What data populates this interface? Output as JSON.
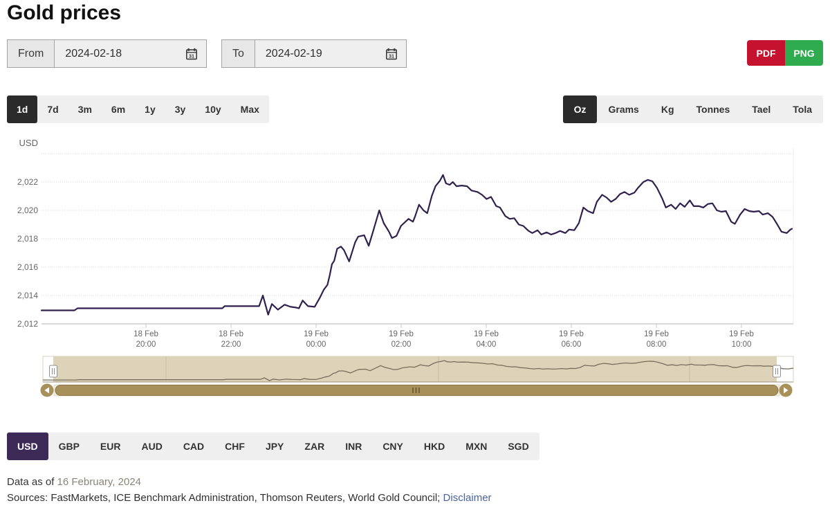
{
  "page": {
    "title": "Gold prices"
  },
  "date_controls": {
    "from": {
      "label": "From",
      "value": "2024-02-18"
    },
    "to": {
      "label": "To",
      "value": "2024-02-19"
    }
  },
  "export_buttons": {
    "pdf_label": "PDF",
    "png_label": "PNG"
  },
  "range_tabs": {
    "items": [
      "1d",
      "7d",
      "3m",
      "6m",
      "1y",
      "3y",
      "10y",
      "Max"
    ],
    "active": "1d"
  },
  "unit_tabs": {
    "items": [
      "Oz",
      "Grams",
      "Kg",
      "Tonnes",
      "Tael",
      "Tola"
    ],
    "active": "Oz"
  },
  "currency_tabs": {
    "items": [
      "USD",
      "GBP",
      "EUR",
      "AUD",
      "CAD",
      "CHF",
      "JPY",
      "ZAR",
      "INR",
      "CNY",
      "HKD",
      "MXN",
      "SGD"
    ],
    "active": "USD"
  },
  "colors": {
    "tab_dark": "#2b2b2b",
    "accent_purple": "#3d2a57",
    "pdf_red": "#c5122e",
    "png_green": "#2eab4e",
    "line_purple": "#31204d",
    "navigator_line": "#7a6d5c",
    "navigator_bg": "#dcd3b8",
    "scrollbar_gold": "#a7905a",
    "link_blue": "#46649b"
  },
  "chart_data": {
    "type": "line",
    "title": "Gold prices",
    "currency_label": "USD",
    "legend": "none",
    "grid": "on",
    "y_axis": {
      "label": "USD",
      "min": 2012,
      "max": 2024.6,
      "ticks": [
        {
          "value": 2012,
          "label": "2,012"
        },
        {
          "value": 2014,
          "label": "2,014"
        },
        {
          "value": 2016,
          "label": "2,016"
        },
        {
          "value": 2018,
          "label": "2,018"
        },
        {
          "value": 2020,
          "label": "2,020"
        },
        {
          "value": 2022,
          "label": "2,022"
        }
      ],
      "gridline_values": [
        2014,
        2016,
        2018,
        2020,
        2022,
        2024
      ]
    },
    "x_axis": {
      "range_note": "18 Feb ~17:30 to 19 Feb ~11:10",
      "ticks": [
        {
          "pos": 0.1392,
          "date": "18 Feb",
          "time": "20:00"
        },
        {
          "pos": 0.2526,
          "date": "18 Feb",
          "time": "22:00"
        },
        {
          "pos": 0.3659,
          "date": "19 Feb",
          "time": "00:00"
        },
        {
          "pos": 0.4793,
          "date": "19 Feb",
          "time": "02:00"
        },
        {
          "pos": 0.5926,
          "date": "19 Feb",
          "time": "04:00"
        },
        {
          "pos": 0.706,
          "date": "19 Feb",
          "time": "06:00"
        },
        {
          "pos": 0.8194,
          "date": "19 Feb",
          "time": "08:00"
        },
        {
          "pos": 0.9327,
          "date": "19 Feb",
          "time": "10:00"
        }
      ]
    },
    "series": [
      {
        "name": "Gold price (USD per Oz)",
        "color": "#31204d",
        "points": [
          [
            0.0,
            2012.95
          ],
          [
            0.044,
            2012.95
          ],
          [
            0.048,
            2013.1
          ],
          [
            0.241,
            2013.1
          ],
          [
            0.244,
            2013.25
          ],
          [
            0.29,
            2013.25
          ],
          [
            0.295,
            2014.0
          ],
          [
            0.302,
            2012.65
          ],
          [
            0.307,
            2013.4
          ],
          [
            0.315,
            2013.0
          ],
          [
            0.324,
            2013.35
          ],
          [
            0.332,
            2013.2
          ],
          [
            0.339,
            2013.15
          ],
          [
            0.343,
            2013.1
          ],
          [
            0.348,
            2013.65
          ],
          [
            0.355,
            2013.25
          ],
          [
            0.364,
            2013.2
          ],
          [
            0.371,
            2013.85
          ],
          [
            0.376,
            2014.4
          ],
          [
            0.381,
            2014.75
          ],
          [
            0.384,
            2015.4
          ],
          [
            0.387,
            2016.2
          ],
          [
            0.39,
            2016.45
          ],
          [
            0.394,
            2017.3
          ],
          [
            0.399,
            2017.45
          ],
          [
            0.403,
            2017.2
          ],
          [
            0.41,
            2016.4
          ],
          [
            0.418,
            2017.75
          ],
          [
            0.422,
            2018.15
          ],
          [
            0.43,
            2018.25
          ],
          [
            0.436,
            2017.5
          ],
          [
            0.442,
            2018.55
          ],
          [
            0.45,
            2020.0
          ],
          [
            0.456,
            2019.1
          ],
          [
            0.463,
            2018.5
          ],
          [
            0.467,
            2018.05
          ],
          [
            0.473,
            2018.2
          ],
          [
            0.479,
            2018.9
          ],
          [
            0.489,
            2019.4
          ],
          [
            0.495,
            2019.2
          ],
          [
            0.498,
            2019.6
          ],
          [
            0.503,
            2020.4
          ],
          [
            0.509,
            2020.0
          ],
          [
            0.514,
            2019.8
          ],
          [
            0.52,
            2021.0
          ],
          [
            0.525,
            2021.7
          ],
          [
            0.531,
            2022.1
          ],
          [
            0.535,
            2022.5
          ],
          [
            0.539,
            2021.9
          ],
          [
            0.544,
            2021.8
          ],
          [
            0.548,
            2022.0
          ],
          [
            0.553,
            2021.7
          ],
          [
            0.56,
            2021.75
          ],
          [
            0.567,
            2021.7
          ],
          [
            0.573,
            2021.4
          ],
          [
            0.581,
            2021.3
          ],
          [
            0.587,
            2021.1
          ],
          [
            0.593,
            2020.8
          ],
          [
            0.599,
            2020.95
          ],
          [
            0.606,
            2020.3
          ],
          [
            0.611,
            2020.2
          ],
          [
            0.618,
            2019.6
          ],
          [
            0.624,
            2019.4
          ],
          [
            0.63,
            2019.45
          ],
          [
            0.636,
            2019.0
          ],
          [
            0.642,
            2018.9
          ],
          [
            0.649,
            2018.55
          ],
          [
            0.654,
            2018.4
          ],
          [
            0.661,
            2018.6
          ],
          [
            0.666,
            2018.3
          ],
          [
            0.673,
            2018.45
          ],
          [
            0.679,
            2018.3
          ],
          [
            0.685,
            2018.4
          ],
          [
            0.691,
            2018.55
          ],
          [
            0.698,
            2018.4
          ],
          [
            0.703,
            2018.65
          ],
          [
            0.71,
            2018.6
          ],
          [
            0.716,
            2019.1
          ],
          [
            0.722,
            2020.2
          ],
          [
            0.728,
            2019.95
          ],
          [
            0.735,
            2019.8
          ],
          [
            0.74,
            2020.6
          ],
          [
            0.747,
            2021.1
          ],
          [
            0.753,
            2020.9
          ],
          [
            0.759,
            2020.6
          ],
          [
            0.765,
            2020.8
          ],
          [
            0.771,
            2021.15
          ],
          [
            0.777,
            2021.3
          ],
          [
            0.783,
            2021.1
          ],
          [
            0.79,
            2021.25
          ],
          [
            0.795,
            2021.6
          ],
          [
            0.802,
            2022.0
          ],
          [
            0.808,
            2022.15
          ],
          [
            0.814,
            2022.05
          ],
          [
            0.82,
            2021.6
          ],
          [
            0.827,
            2020.85
          ],
          [
            0.832,
            2020.2
          ],
          [
            0.839,
            2020.4
          ],
          [
            0.845,
            2020.1
          ],
          [
            0.851,
            2020.5
          ],
          [
            0.857,
            2020.25
          ],
          [
            0.864,
            2020.7
          ],
          [
            0.869,
            2020.3
          ],
          [
            0.876,
            2020.3
          ],
          [
            0.882,
            2020.2
          ],
          [
            0.888,
            2020.45
          ],
          [
            0.894,
            2020.5
          ],
          [
            0.9,
            2020.0
          ],
          [
            0.906,
            2019.9
          ],
          [
            0.912,
            2019.95
          ],
          [
            0.919,
            2019.2
          ],
          [
            0.924,
            2019.05
          ],
          [
            0.931,
            2019.7
          ],
          [
            0.937,
            2020.1
          ],
          [
            0.943,
            2019.95
          ],
          [
            0.949,
            2019.9
          ],
          [
            0.956,
            2019.95
          ],
          [
            0.961,
            2019.7
          ],
          [
            0.968,
            2019.8
          ],
          [
            0.974,
            2019.55
          ],
          [
            0.98,
            2019.05
          ],
          [
            0.986,
            2018.5
          ],
          [
            0.993,
            2018.4
          ],
          [
            0.998,
            2018.65
          ],
          [
            1.0,
            2018.7
          ]
        ]
      }
    ]
  },
  "footer": {
    "data_as_of_label": "Data as of",
    "data_as_of_value": "16 February, 2024",
    "sources_text": "Sources: FastMarkets, ICE Benchmark Administration, Thomson Reuters, World Gold Council;",
    "disclaimer_label": "Disclaimer"
  }
}
